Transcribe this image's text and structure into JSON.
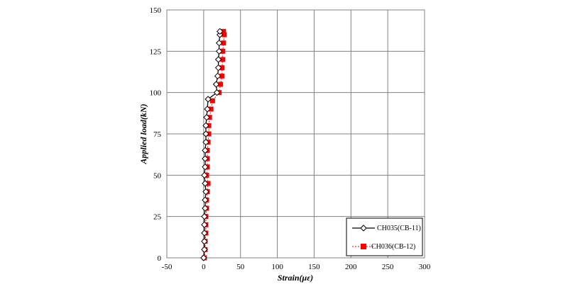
{
  "chart_data": {
    "type": "line",
    "xlabel": "Strain(με)",
    "ylabel": "Applied  load(kN)",
    "xlim": [
      -50,
      300
    ],
    "ylim": [
      0,
      150
    ],
    "xticks": [
      "-50",
      "0",
      "50",
      "100",
      "150",
      "200",
      "250",
      "300"
    ],
    "yticks": [
      "0",
      "25",
      "50",
      "75",
      "100",
      "125",
      "150"
    ],
    "grid": true,
    "legend_position": "bottom-right",
    "series": [
      {
        "name": "CH035(CB-11)",
        "color": "#000000",
        "marker": "diamond-open",
        "points": [
          [
            0,
            0
          ],
          [
            1,
            5
          ],
          [
            1,
            10
          ],
          [
            1,
            15
          ],
          [
            1,
            20
          ],
          [
            1,
            25
          ],
          [
            2,
            30
          ],
          [
            2,
            35
          ],
          [
            3,
            40
          ],
          [
            2,
            45
          ],
          [
            1,
            50
          ],
          [
            2,
            55
          ],
          [
            2,
            60
          ],
          [
            2,
            65
          ],
          [
            3,
            70
          ],
          [
            3,
            75
          ],
          [
            3,
            80
          ],
          [
            4,
            85
          ],
          [
            5,
            90
          ],
          [
            6,
            96
          ],
          [
            18,
            100
          ],
          [
            17,
            105
          ],
          [
            19,
            110
          ],
          [
            20,
            115
          ],
          [
            20,
            120
          ],
          [
            21,
            125
          ],
          [
            21,
            130
          ],
          [
            22,
            135
          ],
          [
            22,
            137
          ]
        ]
      },
      {
        "name": "CH036(CB-12)",
        "color": "#ff0000",
        "marker": "square",
        "points": [
          [
            1,
            0
          ],
          [
            2,
            5
          ],
          [
            2,
            10
          ],
          [
            3,
            15
          ],
          [
            3,
            20
          ],
          [
            3,
            25
          ],
          [
            4,
            30
          ],
          [
            4,
            35
          ],
          [
            5,
            40
          ],
          [
            6,
            45
          ],
          [
            4,
            50
          ],
          [
            5,
            55
          ],
          [
            5,
            60
          ],
          [
            5,
            65
          ],
          [
            6,
            70
          ],
          [
            7,
            75
          ],
          [
            7,
            80
          ],
          [
            8,
            85
          ],
          [
            10,
            90
          ],
          [
            12,
            95
          ],
          [
            21,
            100
          ],
          [
            23,
            105
          ],
          [
            25,
            110
          ],
          [
            25,
            115
          ],
          [
            26,
            120
          ],
          [
            26,
            125
          ],
          [
            27,
            130
          ],
          [
            28,
            135
          ],
          [
            27,
            137
          ]
        ]
      }
    ]
  }
}
